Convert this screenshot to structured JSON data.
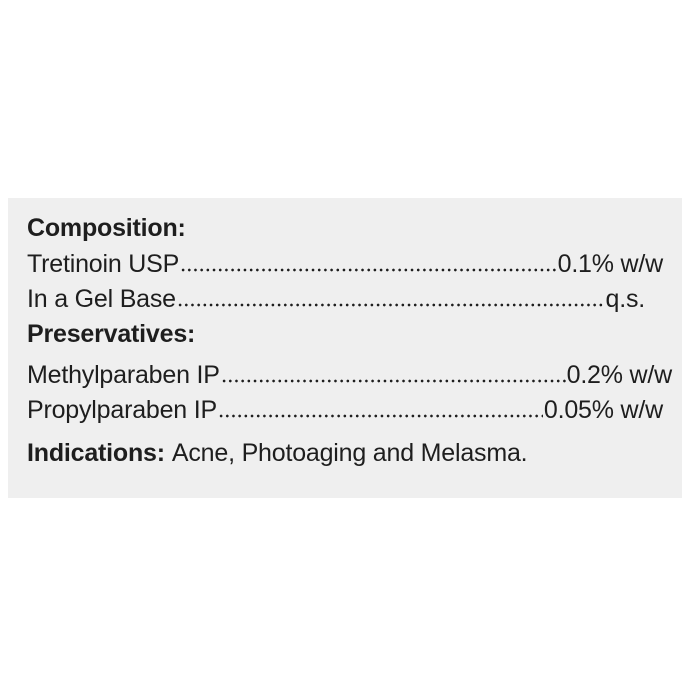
{
  "composition": {
    "heading": "Composition:",
    "items": [
      {
        "name": "Tretinoin USP",
        "amount": "0.1% w/w"
      },
      {
        "name": "In a Gel Base",
        "amount": "q.s."
      }
    ]
  },
  "preservatives": {
    "heading": "Preservatives:",
    "items": [
      {
        "name": "Methylparaben IP",
        "amount": "0.2% w/w"
      },
      {
        "name": "Propylparaben IP",
        "amount": "0.05% w/w"
      }
    ]
  },
  "indications": {
    "label": "Indications:",
    "text": "Acne, Photoaging and Melasma."
  },
  "colors": {
    "background": "#efefef",
    "text": "#1e1e1e"
  }
}
